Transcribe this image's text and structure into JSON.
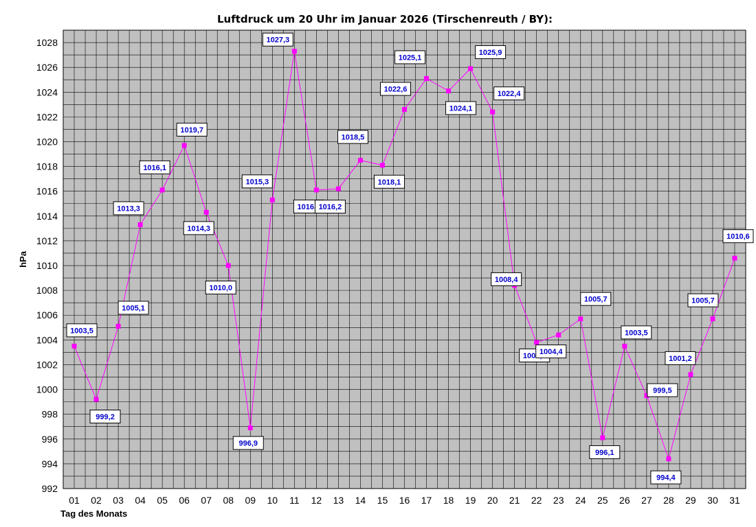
{
  "chart_data": {
    "type": "line",
    "title": "Luftdruck um 20 Uhr im Januar 2026 (Tirschenreuth / BY):",
    "xlabel": "Tag des Monats",
    "ylabel": "hPa",
    "ylim": [
      992,
      1029
    ],
    "yticks": [
      992,
      994,
      996,
      998,
      1000,
      1002,
      1004,
      1006,
      1008,
      1010,
      1012,
      1014,
      1016,
      1018,
      1020,
      1022,
      1024,
      1026,
      1028
    ],
    "grid": true,
    "series": [
      {
        "name": "",
        "x": [
          "01",
          "02",
          "03",
          "04",
          "05",
          "06",
          "07",
          "08",
          "09",
          "10",
          "11",
          "12",
          "13",
          "14",
          "15",
          "16",
          "17",
          "18",
          "19",
          "20",
          "21",
          "22",
          "23",
          "24",
          "25",
          "26",
          "27",
          "28",
          "29",
          "30",
          "31"
        ],
        "values": [
          1003.5,
          999.2,
          1005.1,
          1013.3,
          1016.1,
          1019.7,
          1014.3,
          1010.0,
          996.9,
          1015.3,
          1027.3,
          1016.1,
          1016.2,
          1018.5,
          1018.1,
          1022.6,
          1025.1,
          1024.1,
          1025.9,
          1022.4,
          1008.4,
          1003.8,
          1004.4,
          1005.7,
          996.1,
          1003.5,
          999.5,
          994.4,
          1001.2,
          1005.7,
          1010.6
        ],
        "labels": [
          "1003,5",
          "999,2",
          "1005,1",
          "1013,3",
          "1016,1",
          "1019,7",
          "1014,3",
          "1010,0",
          "996,9",
          "1015,3",
          "1027,3",
          "1016,1",
          "1016,2",
          "1018,5",
          "1018,1",
          "1022,6",
          "1025,1",
          "1024,1",
          "1025,9",
          "1022,4",
          "1008,4",
          "1003,8",
          "1004,4",
          "1005,7",
          "996,1",
          "1003,5",
          "999,5",
          "994,4",
          "1001,2",
          "1005,7",
          "1010,6"
        ]
      }
    ],
    "colors": {
      "line": "#ff00ff",
      "plot_bg": "#c0c0c0",
      "grid": "#000000",
      "label_text": "#0000cc"
    }
  }
}
